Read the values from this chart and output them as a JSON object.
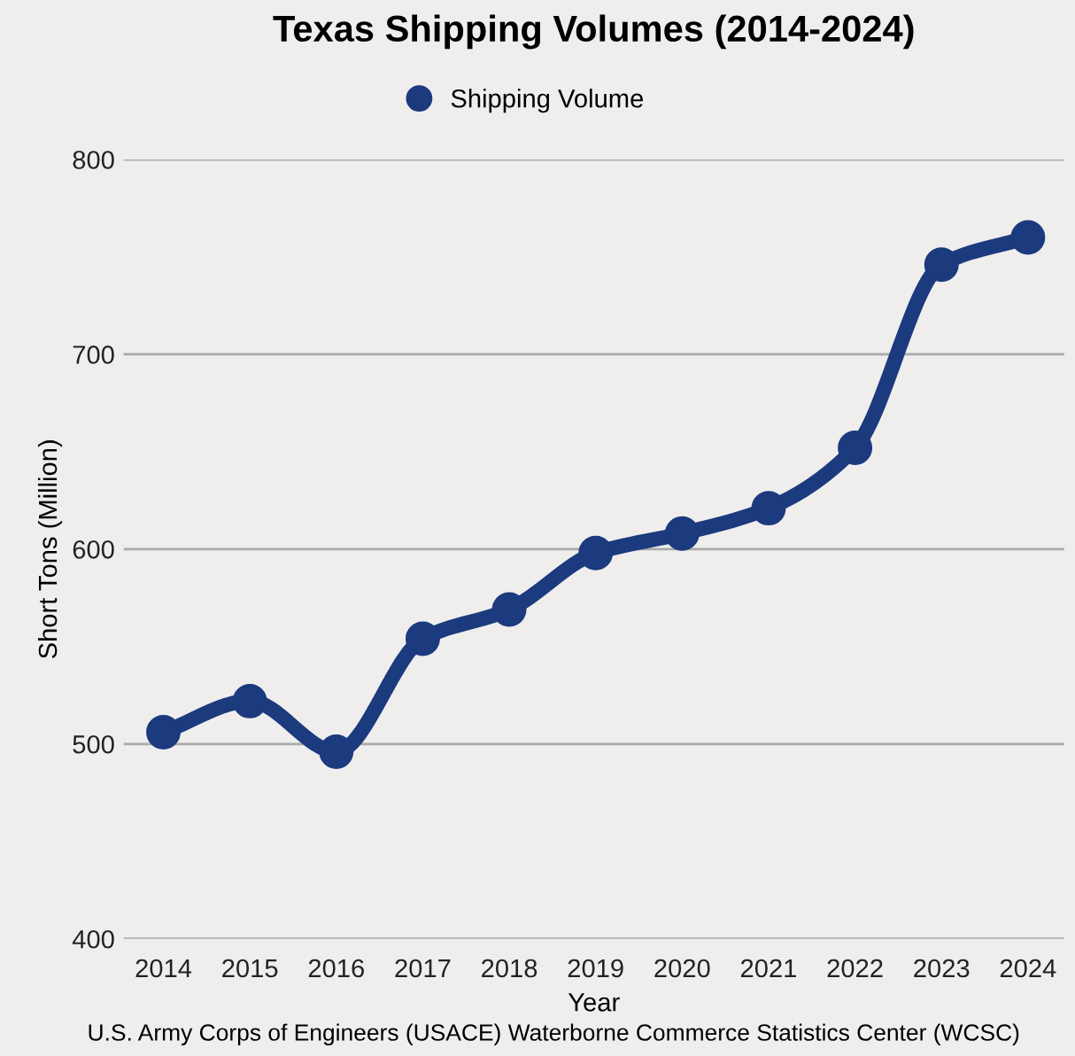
{
  "chart_data": {
    "type": "line",
    "title": "Texas Shipping Volumes (2014-2024)",
    "xlabel": "Year",
    "ylabel": "Short Tons (Million)",
    "categories": [
      "2014",
      "2015",
      "2016",
      "2017",
      "2018",
      "2019",
      "2020",
      "2021",
      "2022",
      "2023",
      "2024"
    ],
    "series": [
      {
        "name": "Shipping Volume",
        "color": "#1c3a7e",
        "values": [
          506,
          522,
          496,
          554,
          569,
          598,
          608,
          621,
          652,
          746,
          760
        ]
      }
    ],
    "ylim": [
      400,
      800
    ],
    "yticks": [
      400,
      500,
      600,
      700,
      800
    ],
    "grid": "y",
    "legend": "top",
    "marker": "circle",
    "line_style": "solid",
    "annotations": [
      "U.S. Army Corps of Engineers (USACE) Waterborne Commerce Statistics Center (WCSC)"
    ]
  }
}
